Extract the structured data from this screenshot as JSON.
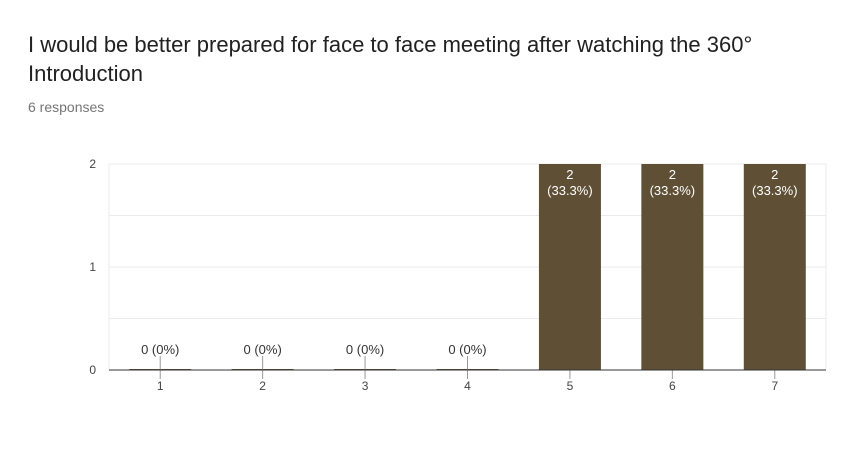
{
  "question": {
    "title": "I would be better prepared for face to face meeting after watching the 360° Introduction",
    "responses": "6 responses"
  },
  "chart_data": {
    "type": "bar",
    "categories": [
      "1",
      "2",
      "3",
      "4",
      "5",
      "6",
      "7"
    ],
    "values": [
      0,
      0,
      0,
      0,
      2,
      2,
      2
    ],
    "labels": [
      [
        "0 (0%)"
      ],
      [
        "0 (0%)"
      ],
      [
        "0 (0%)"
      ],
      [
        "0 (0%)"
      ],
      [
        "2",
        "(33.3%)"
      ],
      [
        "2",
        "(33.3%)"
      ],
      [
        "2",
        "(33.3%)"
      ]
    ],
    "yticks": [
      "0",
      "1",
      "2"
    ],
    "ylim": [
      0,
      2
    ],
    "bar_color": "#5e4f35",
    "grid": true,
    "title": "",
    "xlabel": "",
    "ylabel": ""
  }
}
